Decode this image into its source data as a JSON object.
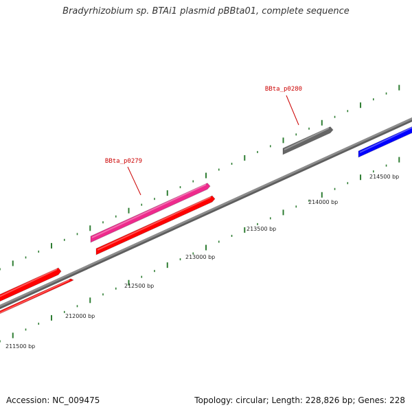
{
  "title": "Bradyrhizobium sp. BTAi1 plasmid pBBta01, complete sequence",
  "footer": {
    "accession": "Accession: NC_009475",
    "summary": "Topology: circular; Length: 228,826 bp; Genes: 228"
  },
  "map": {
    "colors": {
      "backbone": "#8c8c8c",
      "tick": "#2e7d32",
      "gene_label": "#cc0000",
      "position_label": "#222222"
    },
    "position_labels": [
      "211500 bp",
      "212000 bp",
      "212500 bp",
      "213000 bp",
      "213500 bp",
      "214000 bp",
      "214500 bp"
    ],
    "features": [
      {
        "name": "",
        "color": "#ff0000",
        "track": "inner"
      },
      {
        "name": "",
        "color": "#ff0000",
        "track": "inner"
      },
      {
        "name": "BBta_p0279",
        "color": "#ee2a8c",
        "track": "outer"
      },
      {
        "name": "",
        "color": "#666666",
        "track": "outer"
      },
      {
        "name": "",
        "color": "#ff0000",
        "track": "inner"
      },
      {
        "name": "BBta_p0280",
        "color": "",
        "track": ""
      },
      {
        "name": "",
        "color": "#0000ff",
        "track": "inner"
      }
    ]
  }
}
